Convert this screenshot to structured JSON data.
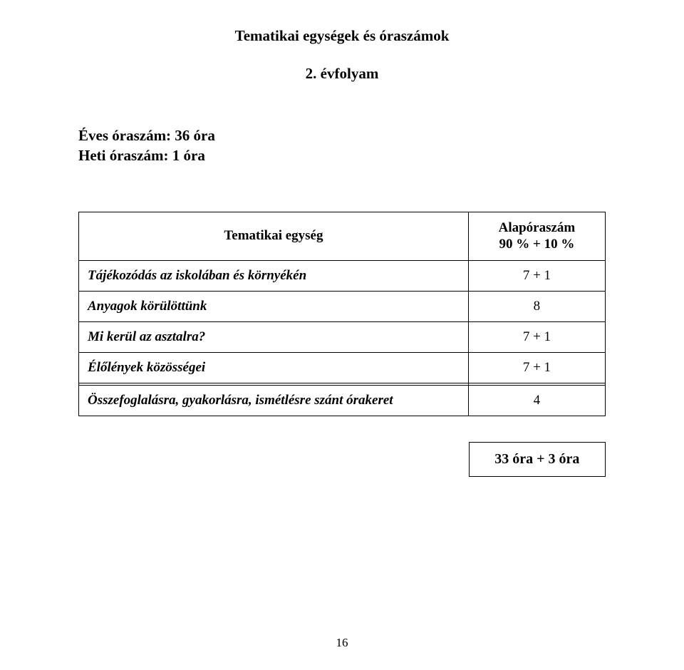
{
  "title": "Tematikai egységek és óraszámok",
  "subtitle": "2. évfolyam",
  "meta_line1": "Éves óraszám: 36 óra",
  "meta_line2": "Heti óraszám:   1 óra",
  "table_header_left": "Tematikai egység",
  "table_header_right_line1": "Alapóraszám",
  "table_header_right_line2": "90 % + 10 %",
  "rows": [
    {
      "label": "Tájékozódás az iskolában és környékén",
      "value": "7 + 1"
    },
    {
      "label": "Anyagok körülöttünk",
      "value": "8"
    },
    {
      "label": "Mi kerül az asztalra?",
      "value": "7 + 1"
    },
    {
      "label": "Élőlények közösségei",
      "value": "7 + 1"
    },
    {
      "label": "Összefoglalásra, gyakorlásra, ismétlésre szánt órakeret",
      "value": "4"
    }
  ],
  "total_label": "33 óra + 3 óra",
  "page_number": "16",
  "colors": {
    "background": "#ffffff",
    "text": "#000000",
    "border": "#000000"
  },
  "fonts": {
    "family": "Times New Roman",
    "title_size_pt": 16,
    "body_size_pt": 14
  }
}
